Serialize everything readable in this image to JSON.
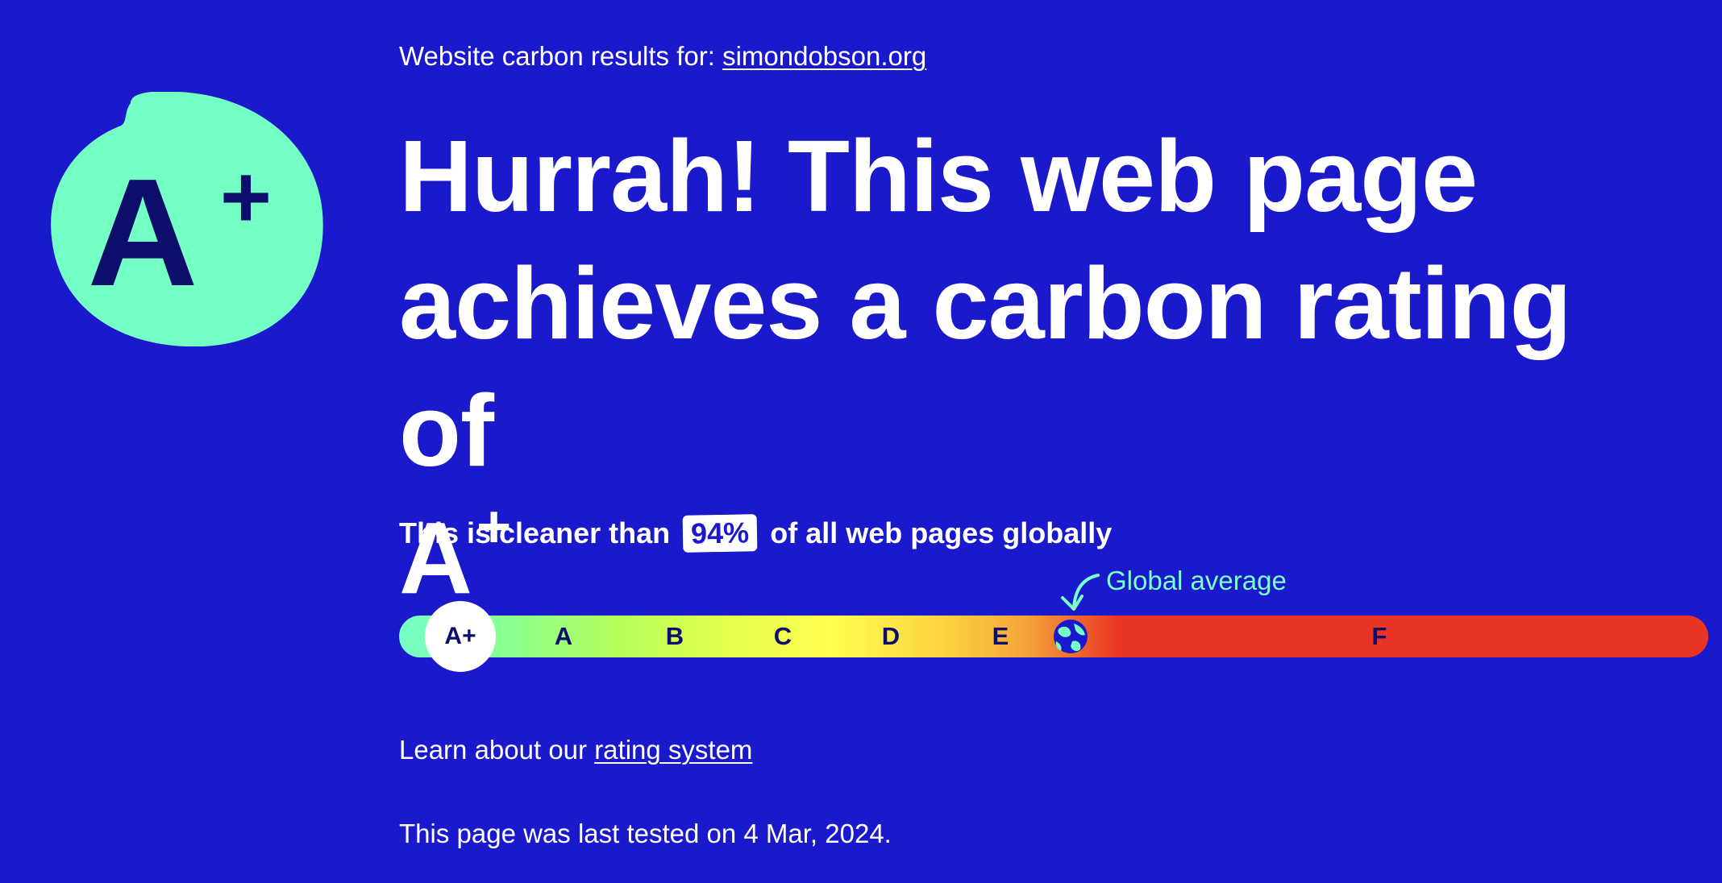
{
  "header": {
    "results_prefix": "Website carbon results for:",
    "site": "simondobson.org"
  },
  "badge": {
    "letter": "A",
    "plus": "+"
  },
  "headline": {
    "text": "Hurrah! This web page achieves a carbon rating of",
    "grade": "A",
    "grade_plus": "+"
  },
  "comparison": {
    "prefix": "This is cleaner than",
    "percent": "94%",
    "suffix": "of all web pages globally"
  },
  "scale": {
    "global_average_label": "Global average",
    "current_grade": "A+",
    "grades": [
      "A",
      "B",
      "C",
      "D",
      "E",
      "F"
    ]
  },
  "footer": {
    "learn_prefix": "Learn about our",
    "learn_link": "rating system",
    "tested": "This page was last tested on 4 Mar, 2024."
  },
  "colors": {
    "background": "#1a1acc",
    "accent": "#74ffc5",
    "dark_text": "#0d0d6b",
    "worst": "#ea3424"
  },
  "icons": {
    "globe": "globe-icon",
    "arrow": "curved-arrow-icon"
  }
}
